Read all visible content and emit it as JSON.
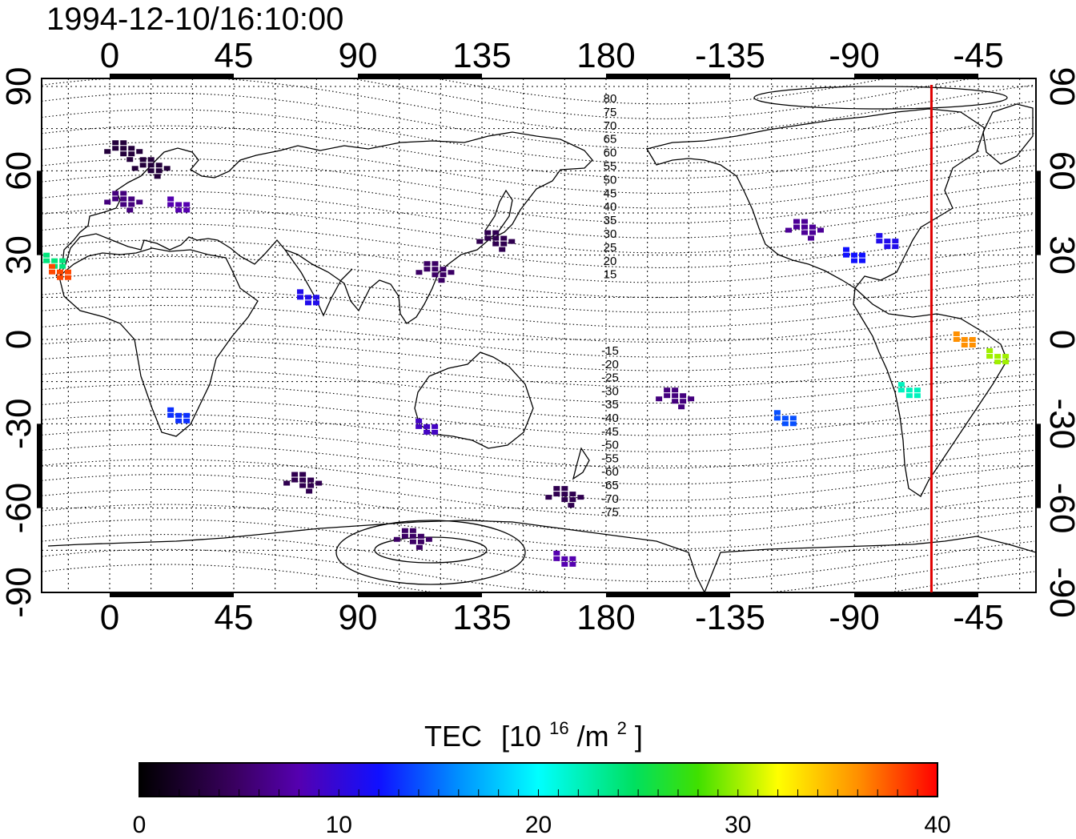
{
  "timestamp": "1994-12-10/16:10:00",
  "map": {
    "lon_ticks": [
      "0",
      "45",
      "90",
      "135",
      "180",
      "-135",
      "-90",
      "-45"
    ],
    "lat_ticks": [
      "90",
      "60",
      "30",
      "0",
      "-30",
      "-60",
      "-90"
    ],
    "mag_lat_labels_north": [
      "80",
      "75",
      "70",
      "65",
      "60",
      "55",
      "50",
      "45",
      "40",
      "35",
      "30",
      "25",
      "20",
      "15"
    ],
    "mag_lat_labels_south": [
      "-15",
      "-20",
      "-25",
      "-30",
      "-35",
      "-40",
      "-45",
      "-50",
      "-55",
      "-60",
      "-65",
      "-70",
      "-75"
    ],
    "terminator_longitude": -62,
    "terminator_color": "#e00000",
    "tec_samples": [
      {
        "lon": -20,
        "lat": 28,
        "tec": 24
      },
      {
        "lon": -18,
        "lat": 24,
        "tec": 38
      },
      {
        "lon": 5,
        "lat": 68,
        "tec": 3
      },
      {
        "lon": 15,
        "lat": 62,
        "tec": 3
      },
      {
        "lon": 5,
        "lat": 50,
        "tec": 6
      },
      {
        "lon": 25,
        "lat": 48,
        "tec": 8
      },
      {
        "lon": 25,
        "lat": -27,
        "tec": 13
      },
      {
        "lon": 72,
        "lat": 15,
        "tec": 11
      },
      {
        "lon": 115,
        "lat": -31,
        "tec": 9
      },
      {
        "lon": 140,
        "lat": 36,
        "tec": 4
      },
      {
        "lon": 118,
        "lat": 25,
        "tec": 5
      },
      {
        "lon": -155,
        "lat": -20,
        "tec": 6
      },
      {
        "lon": -108,
        "lat": 40,
        "tec": 7
      },
      {
        "lon": -78,
        "lat": 35,
        "tec": 11
      },
      {
        "lon": -90,
        "lat": 30,
        "tec": 12
      },
      {
        "lon": -115,
        "lat": -28,
        "tec": 14
      },
      {
        "lon": -70,
        "lat": -18,
        "tec": 22
      },
      {
        "lon": -50,
        "lat": 0,
        "tec": 36
      },
      {
        "lon": -38,
        "lat": -6,
        "tec": 30
      },
      {
        "lon": 70,
        "lat": -50,
        "tec": 4
      },
      {
        "lon": 165,
        "lat": -55,
        "tec": 4
      },
      {
        "lon": 110,
        "lat": -70,
        "tec": 5
      },
      {
        "lon": 165,
        "lat": -78,
        "tec": 8
      }
    ]
  },
  "colorbar": {
    "title": "TEC",
    "unit_prefix": "[10",
    "unit_exp": "16",
    "unit_mid": "/m",
    "unit_exp2": "2",
    "unit_close": "]",
    "ticks": [
      "0",
      "10",
      "20",
      "30",
      "40"
    ]
  }
}
